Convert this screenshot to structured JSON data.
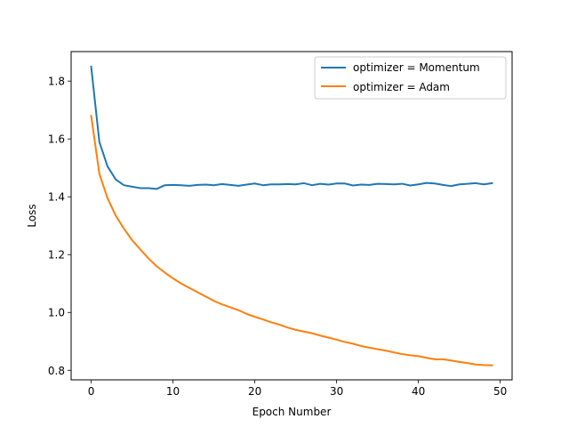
{
  "chart_data": {
    "type": "line",
    "title": "",
    "xlabel": "Epoch Number",
    "ylabel": "Loss",
    "xlim": [
      -2.45,
      51.45
    ],
    "ylim": [
      0.767,
      1.902
    ],
    "xticks": [
      0,
      10,
      20,
      30,
      40,
      50
    ],
    "yticks": [
      0.8,
      1.0,
      1.2,
      1.4,
      1.6,
      1.8
    ],
    "xtick_labels": [
      "0",
      "10",
      "20",
      "30",
      "40",
      "50"
    ],
    "ytick_labels": [
      "0.8",
      "1.0",
      "1.2",
      "1.4",
      "1.6",
      "1.8"
    ],
    "grid": false,
    "legend_position": "top-right",
    "x": [
      0,
      1,
      2,
      3,
      4,
      5,
      6,
      7,
      8,
      9,
      10,
      11,
      12,
      13,
      14,
      15,
      16,
      17,
      18,
      19,
      20,
      21,
      22,
      23,
      24,
      25,
      26,
      27,
      28,
      29,
      30,
      31,
      32,
      33,
      34,
      35,
      36,
      37,
      38,
      39,
      40,
      41,
      42,
      43,
      44,
      45,
      46,
      47,
      48,
      49
    ],
    "series": [
      {
        "name": "optimizer = Momentum",
        "color": "#1f77b4",
        "values": [
          1.85,
          1.59,
          1.505,
          1.46,
          1.44,
          1.435,
          1.43,
          1.43,
          1.427,
          1.44,
          1.441,
          1.44,
          1.438,
          1.441,
          1.442,
          1.44,
          1.444,
          1.441,
          1.438,
          1.442,
          1.446,
          1.44,
          1.443,
          1.443,
          1.444,
          1.443,
          1.447,
          1.44,
          1.445,
          1.442,
          1.446,
          1.446,
          1.439,
          1.442,
          1.441,
          1.445,
          1.444,
          1.443,
          1.445,
          1.439,
          1.443,
          1.448,
          1.446,
          1.441,
          1.437,
          1.443,
          1.445,
          1.447,
          1.443,
          1.447
        ]
      },
      {
        "name": "optimizer = Adam",
        "color": "#ff7f0e",
        "values": [
          1.68,
          1.48,
          1.395,
          1.335,
          1.29,
          1.25,
          1.218,
          1.187,
          1.16,
          1.138,
          1.118,
          1.1,
          1.085,
          1.07,
          1.055,
          1.04,
          1.028,
          1.018,
          1.008,
          0.995,
          0.985,
          0.976,
          0.966,
          0.958,
          0.948,
          0.94,
          0.934,
          0.928,
          0.92,
          0.913,
          0.906,
          0.898,
          0.892,
          0.884,
          0.878,
          0.873,
          0.868,
          0.862,
          0.856,
          0.852,
          0.849,
          0.843,
          0.838,
          0.838,
          0.834,
          0.829,
          0.825,
          0.82,
          0.818,
          0.817
        ]
      }
    ]
  }
}
